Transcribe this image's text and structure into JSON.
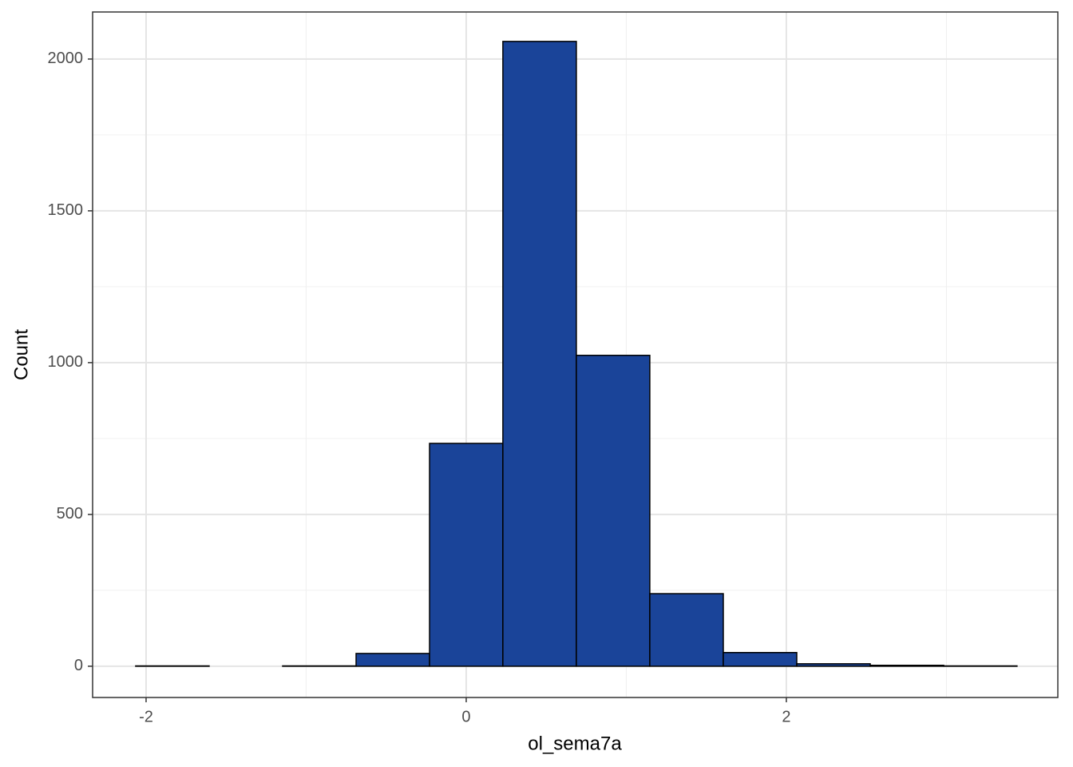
{
  "chart_data": {
    "type": "histogram",
    "x_label": "ol_sema7a",
    "y_label": "Count",
    "bins": [
      -2.065,
      -1.606,
      -1.147,
      -0.688,
      -0.229,
      0.229,
      0.688,
      1.147,
      1.606,
      2.065,
      2.524,
      2.983,
      3.441
    ],
    "values": [
      1,
      0,
      1,
      42,
      734,
      2058,
      1024,
      239,
      45,
      8,
      3,
      1
    ],
    "color": "#1a4499",
    "edge_color": "#000000",
    "xlim": [
      -2.334,
      3.696
    ],
    "xticks": [
      -2,
      0,
      2
    ],
    "x_minor_grid": [
      -1,
      1,
      3
    ],
    "ylim": [
      -103,
      2155
    ],
    "yticks": [
      0,
      500,
      1000,
      1500,
      2000
    ],
    "y_minor_grid": [
      250,
      750,
      1250,
      1750
    ],
    "grid": true
  }
}
